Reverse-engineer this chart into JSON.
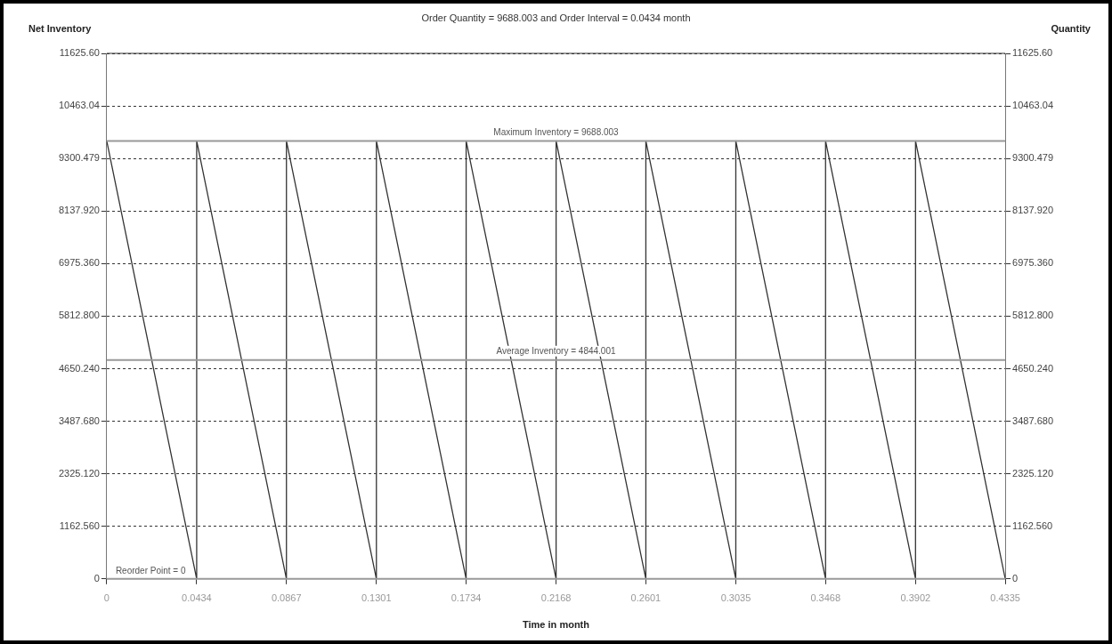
{
  "chart_data": {
    "type": "line",
    "title": "Order Quantity = 9688.003 and Order Interval = 0.0434 month",
    "xlabel": "Time in month",
    "ylabel": "Net Inventory",
    "y2label": "Quantity",
    "x": [
      0,
      0.0434,
      0.0434,
      0.0867,
      0.0867,
      0.1301,
      0.1301,
      0.1734,
      0.1734,
      0.2168,
      0.2168,
      0.2601,
      0.2601,
      0.3035,
      0.3035,
      0.3468,
      0.3468,
      0.3902,
      0.3902,
      0.4335
    ],
    "series": [
      {
        "color": "#333333",
        "values": [
          9688.003,
          0,
          9688.003,
          0,
          9688.003,
          0,
          9688.003,
          0,
          9688.003,
          0,
          9688.003,
          0,
          9688.003,
          0,
          9688.003,
          0,
          9688.003,
          0,
          9688.003,
          0
        ]
      }
    ],
    "xlim": [
      0,
      0.4335
    ],
    "xticks": [
      0,
      0.0434,
      0.0867,
      0.1301,
      0.1734,
      0.2168,
      0.2601,
      0.3035,
      0.3468,
      0.3902,
      0.4335
    ],
    "ylim": [
      0,
      11625.6
    ],
    "yticks": [
      0,
      {
        "value": 1162.56,
        "label": "1162.560"
      },
      {
        "value": 2325.12,
        "label": "2325.120"
      },
      {
        "value": 3487.68,
        "label": "3487.680"
      },
      {
        "value": 4650.24,
        "label": "4650.240"
      },
      {
        "value": 5812.8,
        "label": "5812.800"
      },
      {
        "value": 6975.36,
        "label": "6975.360"
      },
      {
        "value": 8137.92,
        "label": "8137.920"
      },
      9300.479,
      10463.04,
      {
        "value": 11625.6,
        "label": "11625.60"
      }
    ],
    "y2lim": [
      0,
      11625.6
    ],
    "y2ticks": [
      0,
      {
        "value": 1162.56,
        "label": "1162.560"
      },
      {
        "value": 2325.12,
        "label": "2325.120"
      },
      {
        "value": 3487.68,
        "label": "3487.680"
      },
      {
        "value": 4650.24,
        "label": "4650.240"
      },
      {
        "value": 5812.8,
        "label": "5812.800"
      },
      {
        "value": 6975.36,
        "label": "6975.360"
      },
      {
        "value": 8137.92,
        "label": "8137.920"
      },
      9300.479,
      10463.04,
      {
        "value": 11625.6,
        "label": "11625.60"
      }
    ],
    "ref_lines": [
      {
        "axis": "y",
        "value": 9688.003,
        "label": "Maximum Inventory = 9688.003",
        "color": "#999999"
      },
      {
        "axis": "y",
        "value": 4844.001,
        "label": "Average Inventory = 4844.001",
        "color": "#999999"
      },
      {
        "axis": "y",
        "value": 0,
        "label": "Reorder Point = 0",
        "color": "#999999"
      }
    ],
    "grid": "y",
    "legend": false,
    "marker": "none",
    "line_style": "solid"
  }
}
